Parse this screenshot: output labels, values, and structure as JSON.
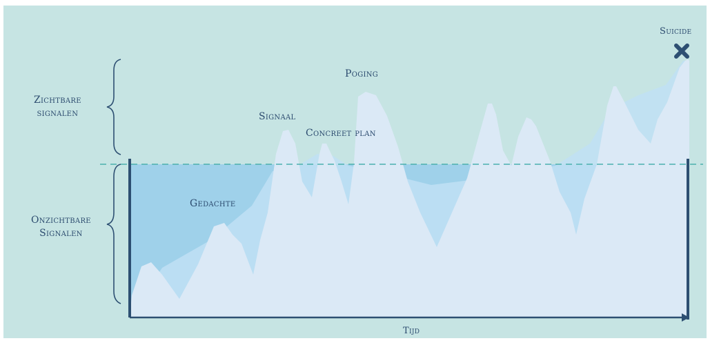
{
  "labels": {
    "visible_signals": [
      "Zichtbare",
      "signalen"
    ],
    "invisible_signals": [
      "Onzichtbare",
      "Signalen"
    ],
    "thought": "Gedachte",
    "signal": "Signaal",
    "concrete_plan": "Concreet plan",
    "attempt": "Poging",
    "suicide": "Suicide",
    "time_axis": "Tijd"
  },
  "colors": {
    "background": "#c6e4e3",
    "water": "#9fd1ea",
    "water_surface_line": "#4ab0ad",
    "mountains_front": "#dbe9f6",
    "mountains_back": "#bfe0f5",
    "axis": "#2d4f72",
    "text": "#2b4a6e"
  },
  "icons": {
    "end_marker": "x-mark-icon"
  }
}
